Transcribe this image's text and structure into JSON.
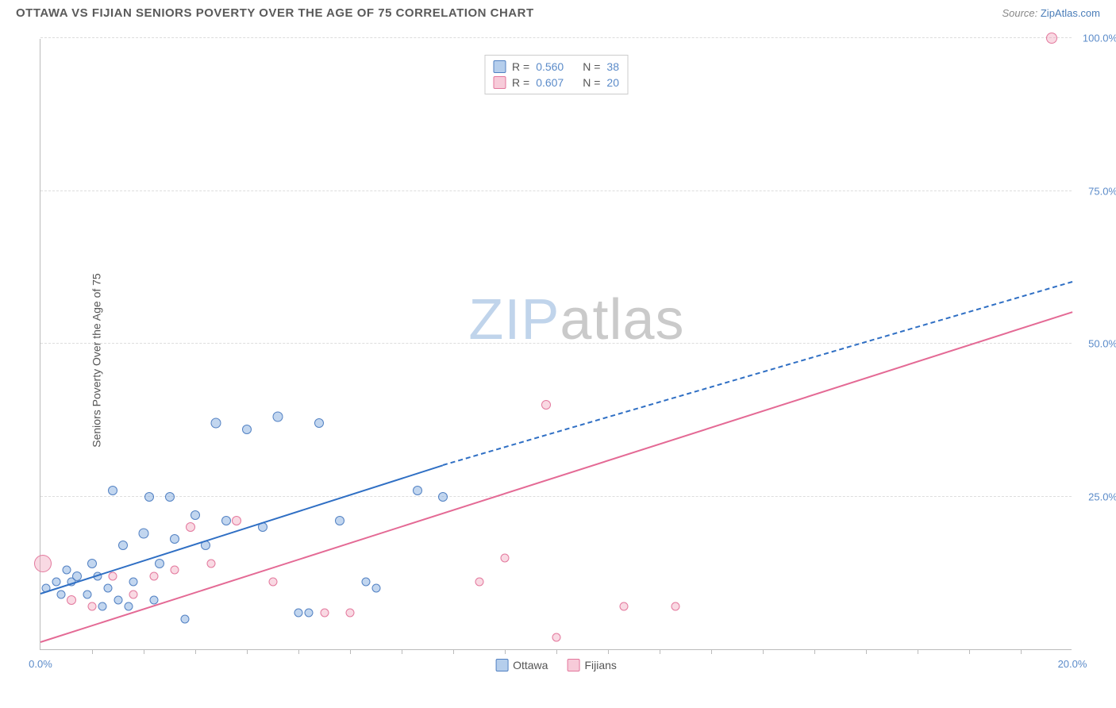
{
  "header": {
    "title": "OTTAWA VS FIJIAN SENIORS POVERTY OVER THE AGE OF 75 CORRELATION CHART",
    "source_prefix": "Source: ",
    "source_link": "ZipAtlas.com"
  },
  "axes": {
    "ylabel": "Seniors Poverty Over the Age of 75",
    "xlim": [
      0,
      20
    ],
    "ylim": [
      0,
      100
    ],
    "ytick_labels": [
      "25.0%",
      "50.0%",
      "75.0%",
      "100.0%"
    ],
    "ytick_vals": [
      25,
      50,
      75,
      100
    ],
    "xtick_labels": [
      "0.0%",
      "20.0%"
    ],
    "xtick_vals": [
      0,
      20
    ],
    "minor_xticks": [
      1,
      2,
      3,
      4,
      5,
      6,
      7,
      8,
      9,
      10,
      11,
      12,
      13,
      14,
      15,
      16,
      17,
      18,
      19
    ]
  },
  "legend_top": {
    "rows": [
      {
        "swatch": "blue",
        "r_label": "R =",
        "r_val": "0.560",
        "n_label": "N =",
        "n_val": "38"
      },
      {
        "swatch": "pink",
        "r_label": "R =",
        "r_val": "0.607",
        "n_label": "N =",
        "n_val": "20"
      }
    ]
  },
  "legend_bottom": {
    "items": [
      {
        "swatch": "blue",
        "label": "Ottawa"
      },
      {
        "swatch": "pink",
        "label": "Fijians"
      }
    ]
  },
  "watermark": {
    "a": "ZIP",
    "b": "atlas"
  },
  "series": {
    "blue": {
      "color_fill": "rgba(120,165,220,0.45)",
      "color_stroke": "rgba(70,120,190,0.9)",
      "trend": {
        "x1": 0,
        "y1": 9,
        "x2": 7.8,
        "y2": 30,
        "dash_x2": 20,
        "dash_y2": 60
      },
      "points": [
        {
          "x": 0.1,
          "y": 10,
          "s": 11
        },
        {
          "x": 0.3,
          "y": 11,
          "s": 11
        },
        {
          "x": 0.4,
          "y": 9,
          "s": 11
        },
        {
          "x": 0.5,
          "y": 13,
          "s": 11
        },
        {
          "x": 0.6,
          "y": 11,
          "s": 11
        },
        {
          "x": 0.7,
          "y": 12,
          "s": 12
        },
        {
          "x": 0.9,
          "y": 9,
          "s": 11
        },
        {
          "x": 1.0,
          "y": 14,
          "s": 12
        },
        {
          "x": 1.1,
          "y": 12,
          "s": 11
        },
        {
          "x": 1.2,
          "y": 7,
          "s": 11
        },
        {
          "x": 1.3,
          "y": 10,
          "s": 11
        },
        {
          "x": 1.4,
          "y": 26,
          "s": 12
        },
        {
          "x": 1.5,
          "y": 8,
          "s": 11
        },
        {
          "x": 1.6,
          "y": 17,
          "s": 12
        },
        {
          "x": 1.7,
          "y": 7,
          "s": 11
        },
        {
          "x": 1.8,
          "y": 11,
          "s": 11
        },
        {
          "x": 2.0,
          "y": 19,
          "s": 13
        },
        {
          "x": 2.1,
          "y": 25,
          "s": 12
        },
        {
          "x": 2.2,
          "y": 8,
          "s": 11
        },
        {
          "x": 2.3,
          "y": 14,
          "s": 12
        },
        {
          "x": 2.5,
          "y": 25,
          "s": 12
        },
        {
          "x": 2.6,
          "y": 18,
          "s": 12
        },
        {
          "x": 2.8,
          "y": 5,
          "s": 11
        },
        {
          "x": 3.0,
          "y": 22,
          "s": 12
        },
        {
          "x": 3.2,
          "y": 17,
          "s": 12
        },
        {
          "x": 3.4,
          "y": 37,
          "s": 13
        },
        {
          "x": 3.6,
          "y": 21,
          "s": 12
        },
        {
          "x": 4.0,
          "y": 36,
          "s": 12
        },
        {
          "x": 4.3,
          "y": 20,
          "s": 12
        },
        {
          "x": 4.6,
          "y": 38,
          "s": 13
        },
        {
          "x": 5.0,
          "y": 6,
          "s": 11
        },
        {
          "x": 5.2,
          "y": 6,
          "s": 11
        },
        {
          "x": 5.8,
          "y": 21,
          "s": 12
        },
        {
          "x": 6.3,
          "y": 11,
          "s": 11
        },
        {
          "x": 6.5,
          "y": 10,
          "s": 11
        },
        {
          "x": 7.3,
          "y": 26,
          "s": 12
        },
        {
          "x": 7.8,
          "y": 25,
          "s": 12
        },
        {
          "x": 5.4,
          "y": 37,
          "s": 12
        }
      ]
    },
    "pink": {
      "color_fill": "rgba(240,160,185,0.40)",
      "color_stroke": "rgba(225,110,150,0.9)",
      "trend": {
        "x1": 0,
        "y1": 1,
        "x2": 20,
        "y2": 55
      },
      "points": [
        {
          "x": 0.05,
          "y": 14,
          "s": 22
        },
        {
          "x": 0.6,
          "y": 8,
          "s": 12
        },
        {
          "x": 1.0,
          "y": 7,
          "s": 11
        },
        {
          "x": 1.4,
          "y": 12,
          "s": 11
        },
        {
          "x": 1.8,
          "y": 9,
          "s": 11
        },
        {
          "x": 2.2,
          "y": 12,
          "s": 11
        },
        {
          "x": 2.6,
          "y": 13,
          "s": 11
        },
        {
          "x": 2.9,
          "y": 20,
          "s": 12
        },
        {
          "x": 3.3,
          "y": 14,
          "s": 11
        },
        {
          "x": 3.8,
          "y": 21,
          "s": 12
        },
        {
          "x": 4.5,
          "y": 11,
          "s": 11
        },
        {
          "x": 5.5,
          "y": 6,
          "s": 11
        },
        {
          "x": 6.0,
          "y": 6,
          "s": 11
        },
        {
          "x": 8.5,
          "y": 11,
          "s": 11
        },
        {
          "x": 9.0,
          "y": 15,
          "s": 11
        },
        {
          "x": 9.8,
          "y": 40,
          "s": 12
        },
        {
          "x": 10.0,
          "y": 2,
          "s": 11
        },
        {
          "x": 11.3,
          "y": 7,
          "s": 11
        },
        {
          "x": 12.3,
          "y": 7,
          "s": 11
        },
        {
          "x": 19.6,
          "y": 100,
          "s": 14
        }
      ]
    }
  },
  "colors": {
    "grid": "#dddddd",
    "axis": "#bbbbbb",
    "bg": "#ffffff",
    "blue_line": "#2f6fc4",
    "pink_line": "#e46a95",
    "tick_text": "#5b8bc9"
  }
}
